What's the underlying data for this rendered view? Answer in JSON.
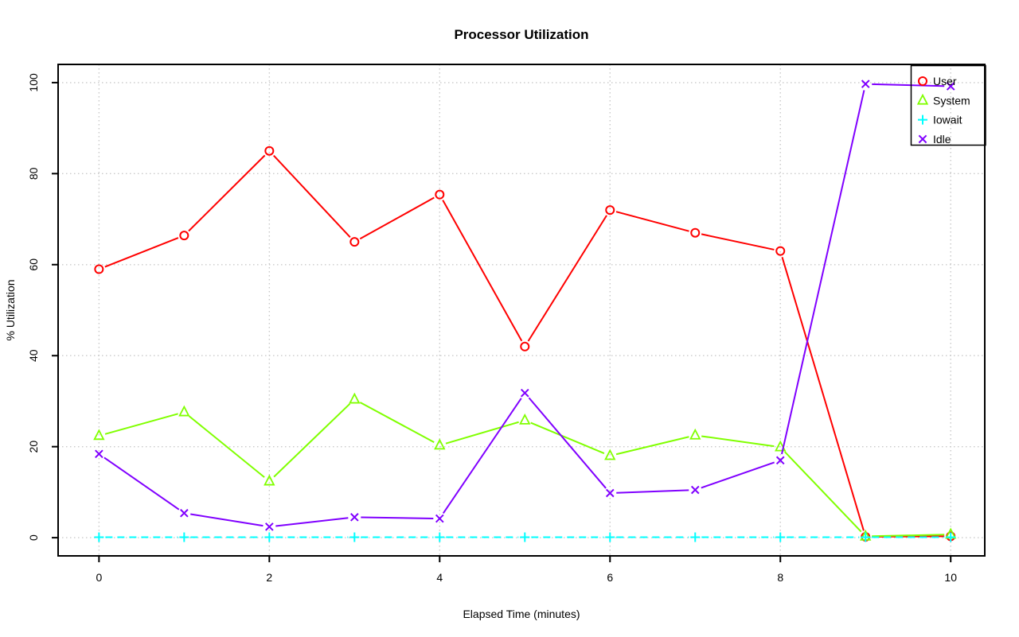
{
  "chart_data": {
    "type": "line",
    "title": "Processor Utilization",
    "xlabel": "Elapsed Time (minutes)",
    "ylabel": "% Utilization",
    "x": [
      0,
      1,
      2,
      3,
      4,
      5,
      6,
      7,
      8,
      9,
      10
    ],
    "xticks": [
      0,
      2,
      4,
      6,
      8,
      10
    ],
    "yticks": [
      0,
      20,
      40,
      60,
      80,
      100
    ],
    "xlim": [
      -0.48,
      10.4
    ],
    "ylim": [
      -4,
      104
    ],
    "grid": true,
    "grid_style": "dotted",
    "legend_position": "topright",
    "series": [
      {
        "name": "User",
        "color": "#FF0000",
        "marker": "circle-open",
        "line": "solid",
        "values": [
          59,
          66.4,
          85,
          65,
          75.4,
          42,
          72,
          67,
          63,
          0.2,
          0.3
        ]
      },
      {
        "name": "System",
        "color": "#80FF00",
        "marker": "triangle-open",
        "line": "solid",
        "values": [
          22.4,
          27.6,
          12.4,
          30.4,
          20.3,
          25.8,
          18,
          22.5,
          19.9,
          0.3,
          0.7
        ]
      },
      {
        "name": "Iowait",
        "color": "#00FFFF",
        "marker": "plus",
        "line": "dashed",
        "values": [
          0.1,
          0.1,
          0.1,
          0.1,
          0.1,
          0.1,
          0.1,
          0.1,
          0.1,
          0.1,
          0.1
        ]
      },
      {
        "name": "Idle",
        "color": "#8000FF",
        "marker": "x",
        "line": "solid",
        "values": [
          18.4,
          5.4,
          2.4,
          4.5,
          4.2,
          31.8,
          9.8,
          10.5,
          17,
          99.7,
          99.2
        ]
      }
    ]
  },
  "colors": {
    "background": "#FFFFFF",
    "grid": "#C9C9C9",
    "axis": "#000000",
    "text": "#000000"
  }
}
